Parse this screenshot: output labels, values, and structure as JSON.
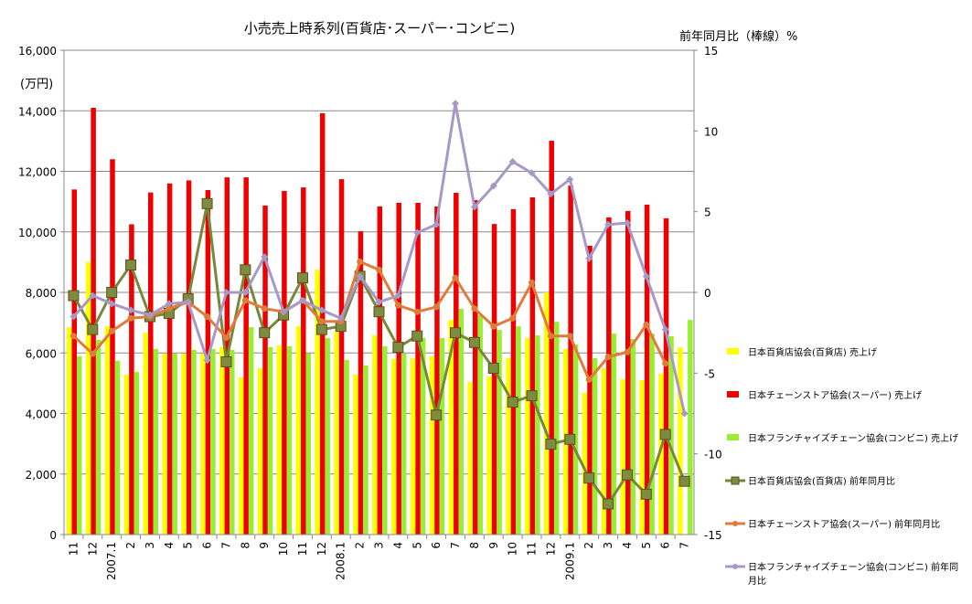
{
  "chart_data": {
    "type": "bar+line",
    "title": "小売売上時系列(百貨店･スーパー･コンビニ)",
    "ylabel": "(万円)",
    "y2label": "前年同月比（棒線）%",
    "ylim": [
      0,
      16000
    ],
    "y2lim": [
      -15,
      15
    ],
    "yticks": [
      "0",
      "2,000",
      "4,000",
      "6,000",
      "8,000",
      "10,000",
      "12,000",
      "14,000",
      "16,000"
    ],
    "y2ticks": [
      "-15",
      "-10",
      "-5",
      "0",
      "5",
      "10",
      "15"
    ],
    "grid": true,
    "legend_position": "right",
    "categories": [
      "11",
      "12",
      "2007.1",
      "2",
      "3",
      "4",
      "5",
      "6",
      "7",
      "8",
      "9",
      "10",
      "11",
      "12",
      "2008.1",
      "2",
      "3",
      "4",
      "5",
      "6",
      "7",
      "8",
      "9",
      "10",
      "11",
      "12",
      "2009.1",
      "2",
      "3",
      "4",
      "5",
      "6",
      "7"
    ],
    "bar_series": [
      {
        "name": "日本百貨店協会(百貨店) 売上げ",
        "color": "#ffff00",
        "values": [
          6850,
          9000,
          6880,
          5280,
          6670,
          5980,
          5980,
          5980,
          6200,
          5190,
          5490,
          6250,
          6880,
          8750,
          6700,
          5280,
          6580,
          5800,
          5830,
          5890,
          7090,
          5040,
          5220,
          5830,
          6490,
          8000,
          6130,
          4680,
          5500,
          5130,
          5100,
          5310,
          6190
        ]
      },
      {
        "name": "日本チェーンストア協会(スーパー) 売上げ",
        "color": "#ee0000",
        "values": [
          11400,
          14100,
          12400,
          10250,
          11300,
          11600,
          11700,
          11380,
          11800,
          11800,
          10870,
          11350,
          11470,
          13920,
          11740,
          10020,
          10840,
          10960,
          10960,
          10840,
          11290,
          11050,
          10260,
          10750,
          11140,
          13010,
          11530,
          9540,
          10480,
          10690,
          10900,
          10450,
          null
        ]
      },
      {
        "name": "日本フランチャイズチェーン協会(コンビニ) 売上げ",
        "color": "#99ee33",
        "values": [
          5890,
          6430,
          5740,
          5370,
          6130,
          5980,
          6100,
          6130,
          6100,
          6850,
          6190,
          6220,
          5980,
          6490,
          5770,
          5590,
          6220,
          5980,
          6490,
          6490,
          7460,
          7250,
          6760,
          6880,
          6580,
          7030,
          6280,
          5830,
          6640,
          6460,
          6640,
          6550,
          7090
        ]
      }
    ],
    "line_series": [
      {
        "name": "日本百貨店協会(百貨店) 前年同月比",
        "color": "#76883a",
        "marker": "square",
        "values": [
          -0.2,
          -2.3,
          0.0,
          1.7,
          -1.5,
          -1.3,
          -0.4,
          5.5,
          -4.3,
          1.4,
          -2.5,
          -1.4,
          0.9,
          -2.3,
          -2.1,
          1.0,
          -1.2,
          -3.4,
          -2.7,
          -7.6,
          -2.5,
          -3.1,
          -4.7,
          -6.8,
          -6.4,
          -9.4,
          -9.1,
          -11.5,
          -13.1,
          -11.3,
          -12.5,
          -8.8,
          -11.7
        ]
      },
      {
        "name": "日本チェーンストア協会(スーパー) 前年同月比",
        "color": "#e07b39",
        "marker": "circle",
        "values": [
          -2.7,
          -3.8,
          -2.4,
          -1.6,
          -1.5,
          -1.0,
          -0.6,
          -1.5,
          -2.8,
          -0.5,
          -1.0,
          -1.2,
          -0.5,
          -1.8,
          -1.8,
          1.9,
          1.4,
          -0.8,
          -1.2,
          -0.9,
          0.9,
          -1.0,
          -2.1,
          -1.6,
          0.6,
          -2.7,
          -2.7,
          -5.4,
          -4.0,
          -3.7,
          -2.0,
          -4.4,
          null
        ]
      },
      {
        "name": "日本フランチャイズチェーン協会(コンビニ) 前年同月比",
        "color": "#a898c8",
        "marker": "diamond",
        "values": [
          -1.5,
          -0.2,
          -0.7,
          -1.1,
          -1.4,
          -0.7,
          -0.6,
          -4.2,
          0.0,
          0.0,
          2.2,
          -1.2,
          -0.5,
          -1.1,
          -1.6,
          1.0,
          -0.6,
          -0.2,
          3.7,
          4.2,
          11.7,
          5.3,
          6.6,
          8.1,
          7.4,
          6.1,
          7.0,
          2.1,
          4.2,
          4.3,
          1.0,
          -2.3,
          -7.5
        ]
      }
    ]
  }
}
